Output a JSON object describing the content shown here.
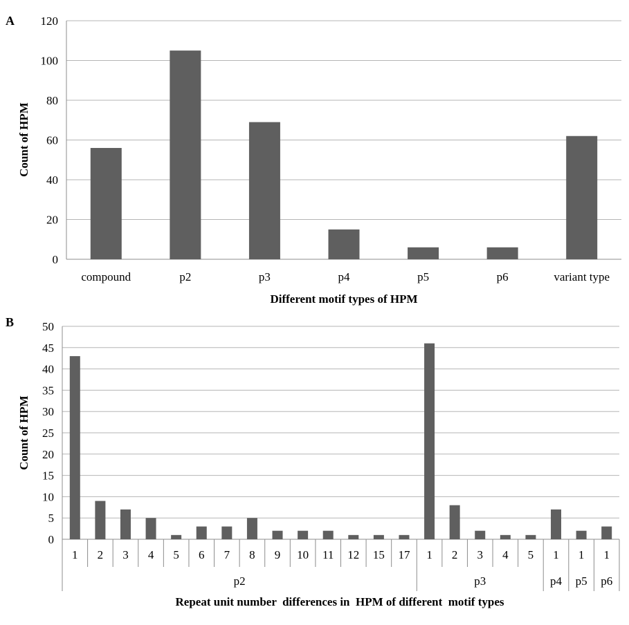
{
  "chart_data": [
    {
      "type": "bar",
      "panel_label": "A",
      "categories": [
        "compound",
        "p2",
        "p3",
        "p4",
        "p5",
        "p6",
        "variant type"
      ],
      "values": [
        56,
        105,
        69,
        15,
        6,
        6,
        62
      ],
      "xlabel": "Different motif types of HPM",
      "ylabel": "Count of HPM",
      "ylim": [
        0,
        120
      ],
      "yticks": [
        0,
        20,
        40,
        60,
        80,
        100,
        120
      ],
      "grid": true,
      "bar_color": "#5f5f5f"
    },
    {
      "type": "bar",
      "panel_label": "B",
      "groups": [
        {
          "name": "p2",
          "categories": [
            "1",
            "2",
            "3",
            "4",
            "5",
            "6",
            "7",
            "8",
            "9",
            "10",
            "11",
            "12",
            "15",
            "17"
          ],
          "values": [
            43,
            9,
            7,
            5,
            1,
            3,
            3,
            5,
            2,
            2,
            2,
            1,
            1,
            1
          ]
        },
        {
          "name": "p3",
          "categories": [
            "1",
            "2",
            "3",
            "4",
            "5"
          ],
          "values": [
            46,
            8,
            2,
            1,
            1
          ]
        },
        {
          "name": "p4",
          "categories": [
            "1"
          ],
          "values": [
            7
          ]
        },
        {
          "name": "p5",
          "categories": [
            "1"
          ],
          "values": [
            2
          ]
        },
        {
          "name": "p6",
          "categories": [
            "1"
          ],
          "values": [
            3
          ]
        }
      ],
      "xlabel": "Repeat unit number  differences in  HPM of different  motif types",
      "ylabel": "Count of HPM",
      "ylim": [
        0,
        50
      ],
      "yticks": [
        0,
        5,
        10,
        15,
        20,
        25,
        30,
        35,
        40,
        45,
        50
      ],
      "grid": true,
      "bar_color": "#5f5f5f"
    }
  ]
}
